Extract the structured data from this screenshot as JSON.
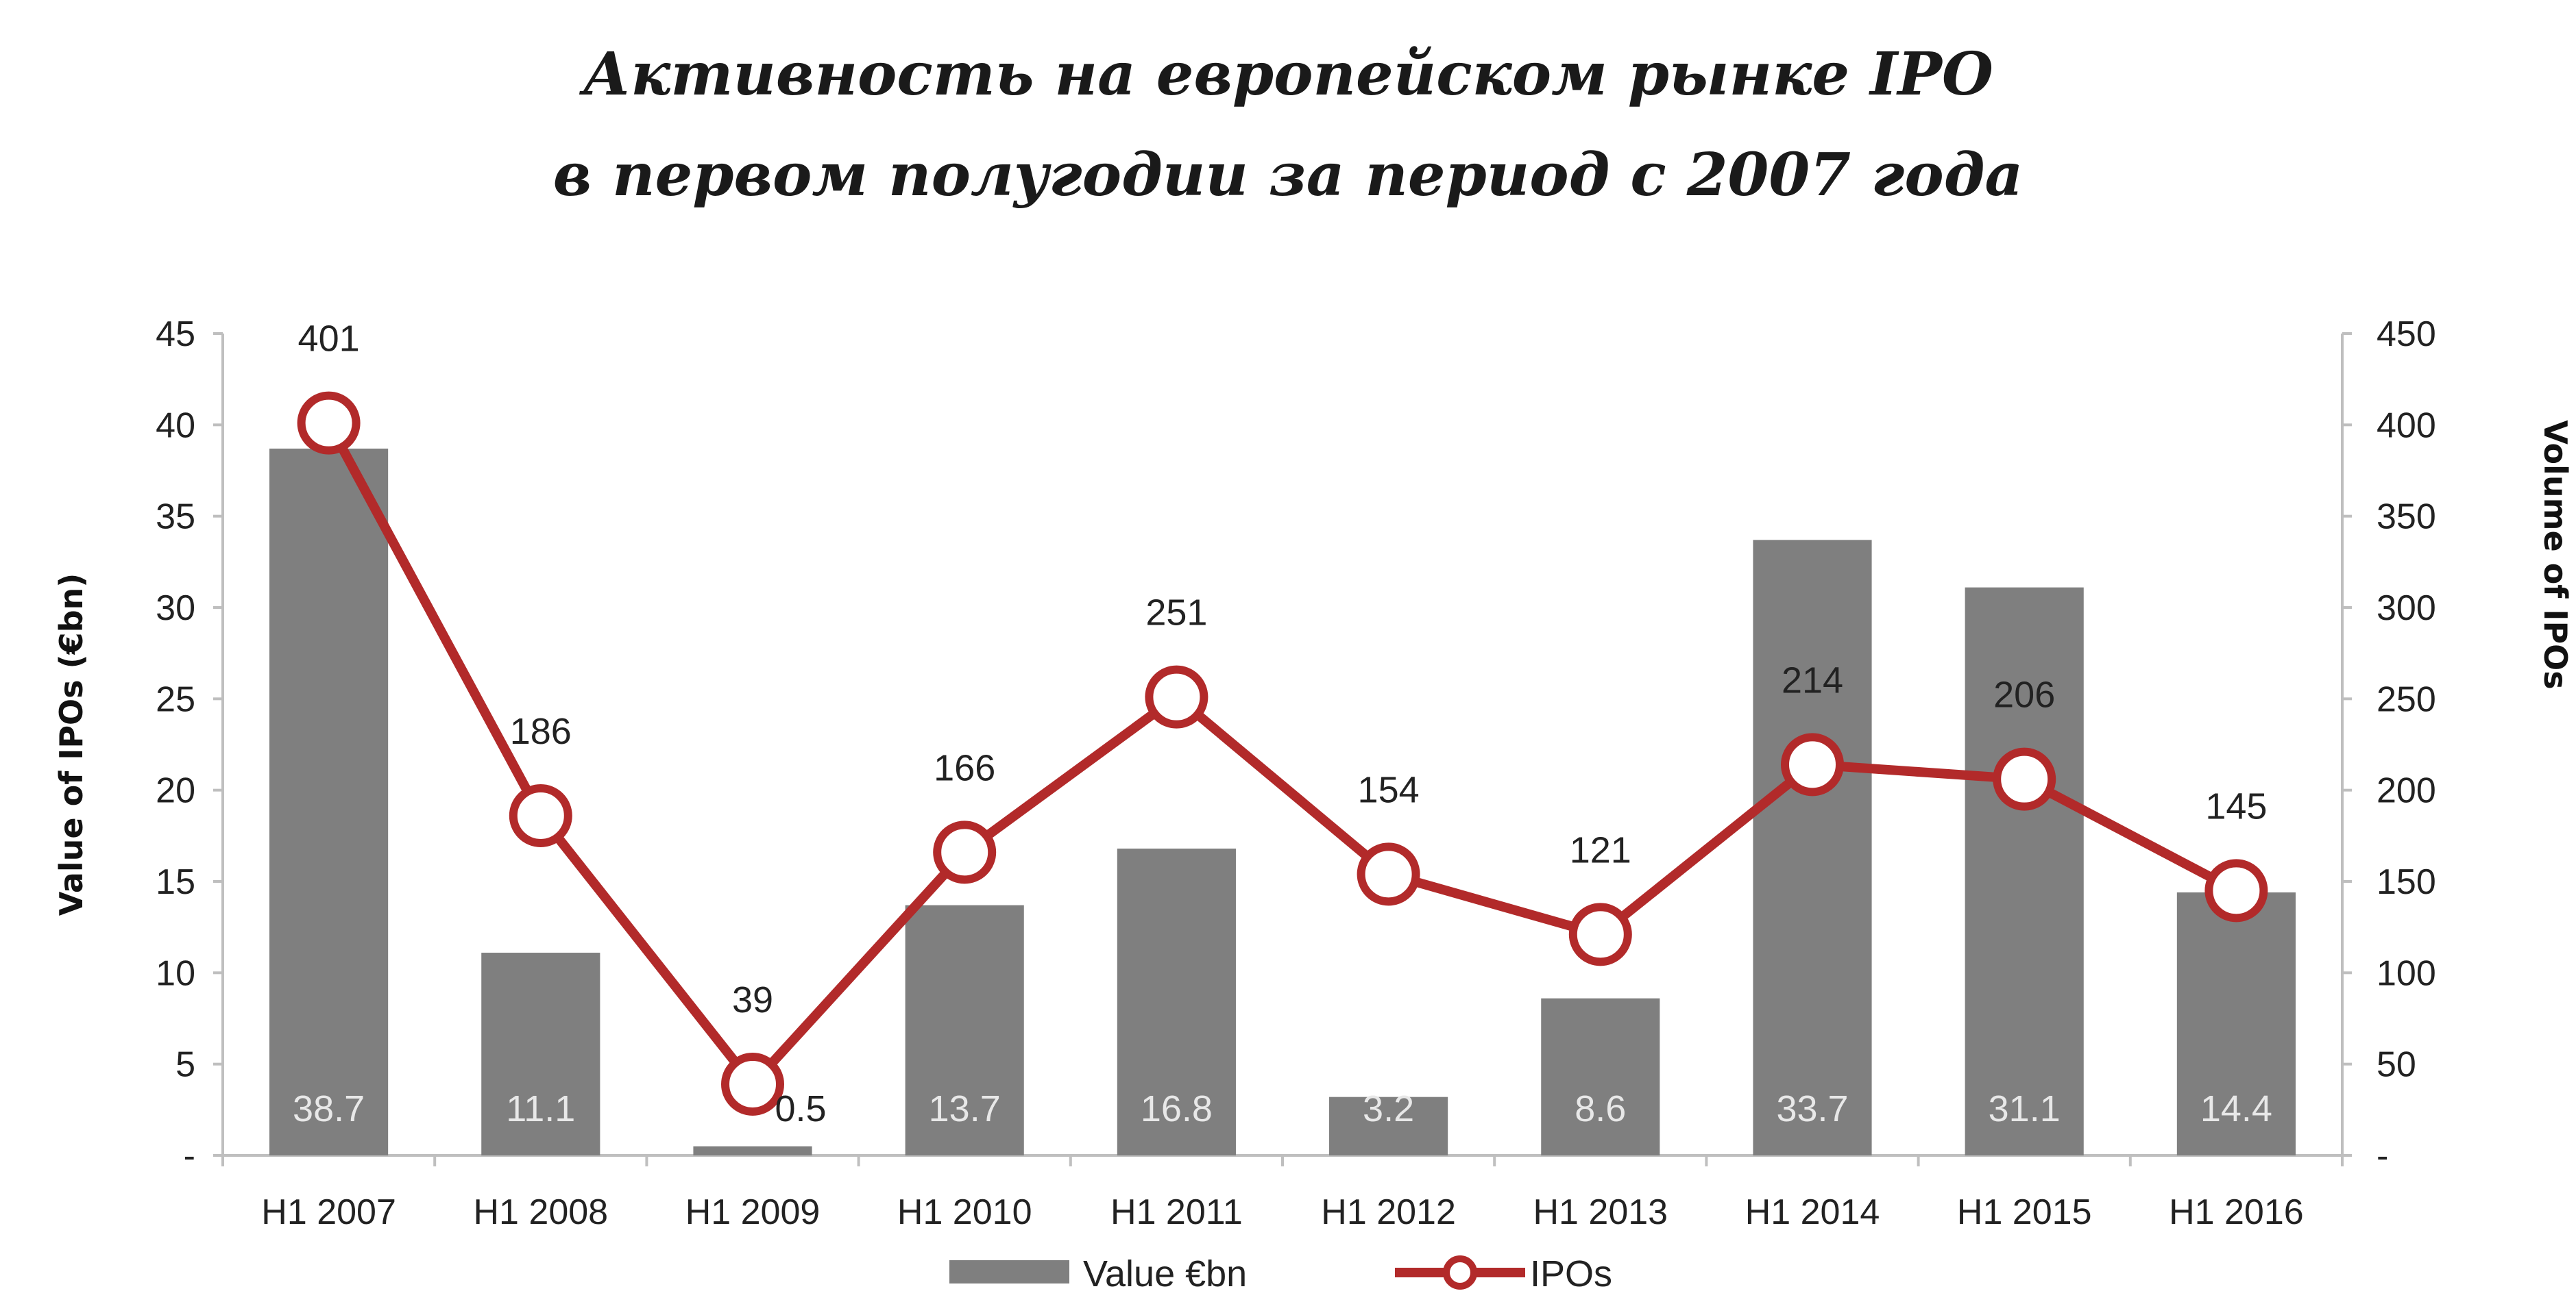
{
  "chart_data": {
    "type": "bar+line",
    "title_lines": [
      "Активность на европейском рынке IPO",
      "в первом полугодии за период с 2007 года"
    ],
    "categories": [
      "H1 2007",
      "H1 2008",
      "H1 2009",
      "H1 2010",
      "H1 2011",
      "H1 2012",
      "H1 2013",
      "H1 2014",
      "H1 2015",
      "H1 2016"
    ],
    "series": [
      {
        "name": "Value €bn",
        "type": "bar",
        "axis": "left",
        "color": "#7f7f7f",
        "values": [
          38.7,
          11.1,
          0.5,
          13.7,
          16.8,
          3.2,
          8.6,
          33.7,
          31.1,
          14.4
        ]
      },
      {
        "name": "IPOs",
        "type": "line",
        "axis": "right",
        "color": "#b22a2a",
        "marker": "hollow-circle",
        "values": [
          401,
          186,
          39,
          166,
          251,
          154,
          121,
          214,
          206,
          145
        ]
      }
    ],
    "ylabel": "Value of IPOs (€bn)",
    "y2label": "Volume of IPOs",
    "ylim": [
      0,
      45
    ],
    "y2lim": [
      0,
      450
    ],
    "yticks": [
      "-",
      "5",
      "10",
      "15",
      "20",
      "25",
      "30",
      "35",
      "40",
      "45"
    ],
    "y2ticks": [
      "-",
      "50",
      "100",
      "150",
      "200",
      "250",
      "300",
      "350",
      "400",
      "450"
    ],
    "grid": false,
    "legend_position": "bottom"
  }
}
